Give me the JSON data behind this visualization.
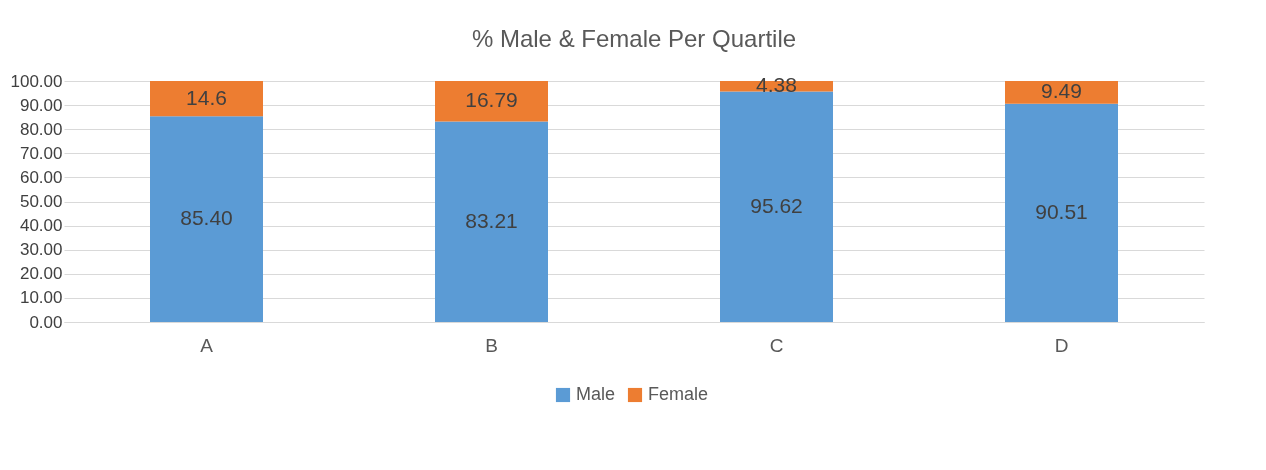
{
  "chart_data": {
    "type": "bar",
    "title": "% Male & Female Per Quartile",
    "stacked": true,
    "categories": [
      "A",
      "B",
      "C",
      "D"
    ],
    "series": [
      {
        "name": "Male",
        "color": "#5b9bd5",
        "values": [
          85.4,
          83.21,
          95.62,
          90.51
        ],
        "value_labels": [
          "85.40",
          "83.21",
          "95.62",
          "90.51"
        ]
      },
      {
        "name": "Female",
        "color": "#ed7d31",
        "values": [
          14.6,
          16.79,
          4.38,
          9.49
        ],
        "value_labels": [
          "14.6",
          "16.79",
          "4.38",
          "9.49"
        ]
      }
    ],
    "ylim": [
      0,
      100
    ],
    "yticks": [
      {
        "value": 0,
        "label": "0.00"
      },
      {
        "value": 10,
        "label": "10.00"
      },
      {
        "value": 20,
        "label": "20.00"
      },
      {
        "value": 30,
        "label": "30.00"
      },
      {
        "value": 40,
        "label": "40.00"
      },
      {
        "value": 50,
        "label": "50.00"
      },
      {
        "value": 60,
        "label": "60.00"
      },
      {
        "value": 70,
        "label": "70.00"
      },
      {
        "value": 80,
        "label": "80.00"
      },
      {
        "value": 90,
        "label": "90.00"
      },
      {
        "value": 100,
        "label": "100.00"
      }
    ],
    "grid": "y",
    "legend": "bottom"
  }
}
